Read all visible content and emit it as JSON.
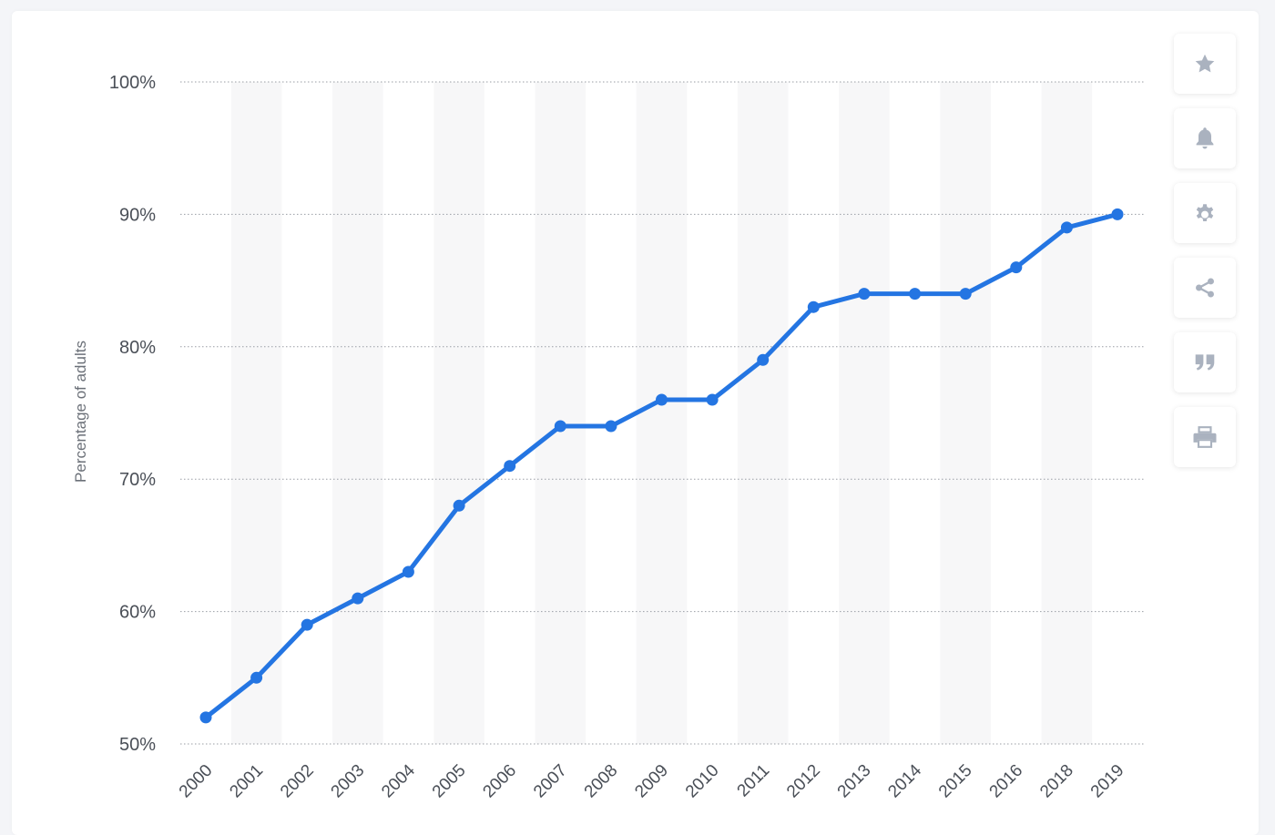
{
  "toolbar": {
    "items": [
      {
        "icon": "star-icon",
        "label": "favorite"
      },
      {
        "icon": "bell-icon",
        "label": "notification"
      },
      {
        "icon": "gear-icon",
        "label": "settings"
      },
      {
        "icon": "share-icon",
        "label": "share"
      },
      {
        "icon": "quote-icon",
        "label": "cite"
      },
      {
        "icon": "print-icon",
        "label": "print"
      }
    ]
  },
  "colors": {
    "line": "#2475e2",
    "band": "#f7f7f8",
    "grid": "#9a9ea5",
    "icon": "#aab2bf"
  },
  "chart_data": {
    "type": "line",
    "title": "",
    "xlabel": "",
    "ylabel": "Percentage of adults",
    "ylim": [
      50,
      100
    ],
    "y_ticks": [
      "50%",
      "60%",
      "70%",
      "80%",
      "90%",
      "100%"
    ],
    "grid": "horizontal dotted",
    "legend": "none",
    "categories": [
      "2000",
      "2001",
      "2002",
      "2003",
      "2004",
      "2005",
      "2006",
      "2007",
      "2008",
      "2009",
      "2010",
      "2011",
      "2012",
      "2013",
      "2014",
      "2015",
      "2016",
      "2018",
      "2019"
    ],
    "series": [
      {
        "values": [
          52,
          55,
          59,
          61,
          63,
          68,
          71,
          74,
          74,
          76,
          76,
          79,
          83,
          84,
          84,
          84,
          86,
          89,
          90
        ]
      }
    ]
  }
}
